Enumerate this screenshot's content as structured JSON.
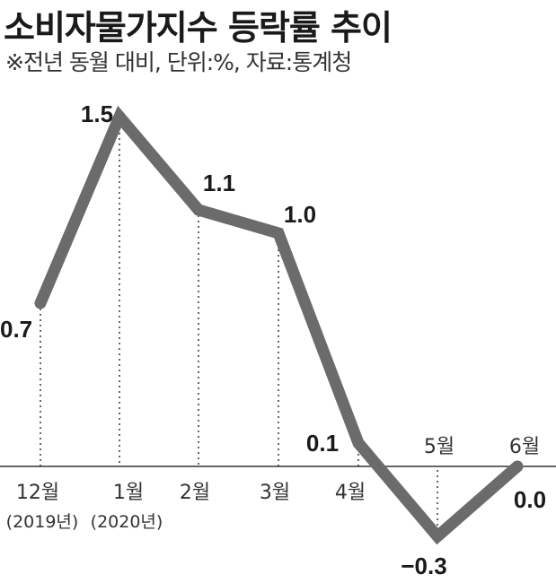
{
  "title": "소비자물가지수 등락률 추이",
  "subtitle": "※전년 동월 대비, 단위:%, 자료:통계청",
  "colors": {
    "line": "#6b6b6b",
    "text": "#1a1a1a",
    "guide": "#333333"
  },
  "chart_data": {
    "type": "line",
    "categories": [
      "12월",
      "1월",
      "2월",
      "3월",
      "4월",
      "5월",
      "6월"
    ],
    "category_sublabels": [
      "(2019년)",
      "(2020년)",
      "",
      "",
      "",
      "",
      ""
    ],
    "values": [
      0.7,
      1.5,
      1.1,
      1.0,
      0.1,
      -0.3,
      0.0
    ],
    "value_labels": [
      "0.7",
      "1.5",
      "1.1",
      "1.0",
      "0.1",
      "−0.3",
      "0.0"
    ],
    "title": "소비자물가지수 등락률 추이",
    "ylim": [
      -0.3,
      1.5
    ],
    "grid": false
  }
}
